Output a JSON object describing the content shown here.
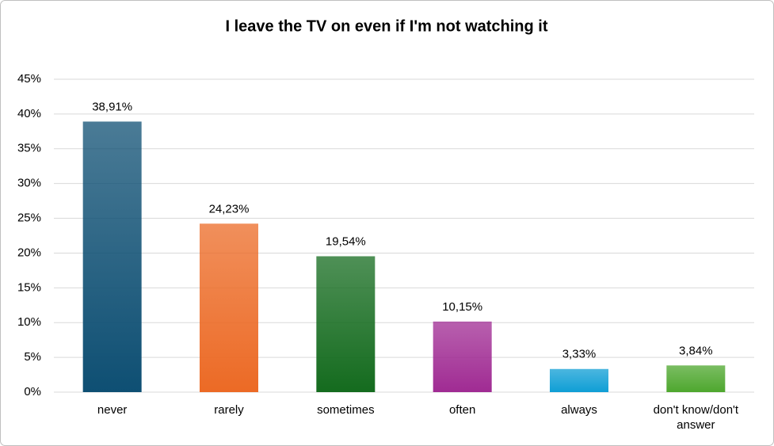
{
  "chart_data": {
    "type": "bar",
    "title": "I leave the TV on even if I'm not watching it",
    "categories": [
      "never",
      "rarely",
      "sometimes",
      "often",
      "always",
      "don't know/don't answer"
    ],
    "values": [
      38.91,
      24.23,
      19.54,
      10.15,
      3.33,
      3.84
    ],
    "value_labels": [
      "38,91%",
      "24,23%",
      "19,54%",
      "10,15%",
      "3,33%",
      "3,84%"
    ],
    "colors": [
      "#0e4f73",
      "#ec6a25",
      "#146b1e",
      "#a02b93",
      "#0f9ed5",
      "#4ea72e"
    ],
    "ylim": [
      0,
      45
    ],
    "yticks": [
      {
        "value": 0,
        "label": "0%"
      },
      {
        "value": 5,
        "label": "5%"
      },
      {
        "value": 10,
        "label": "10%"
      },
      {
        "value": 15,
        "label": "15%"
      },
      {
        "value": 20,
        "label": "20%"
      },
      {
        "value": 25,
        "label": "25%"
      },
      {
        "value": 30,
        "label": "30%"
      },
      {
        "value": 35,
        "label": "35%"
      },
      {
        "value": 40,
        "label": "40%"
      },
      {
        "value": 45,
        "label": "45%"
      }
    ],
    "grid": true
  }
}
